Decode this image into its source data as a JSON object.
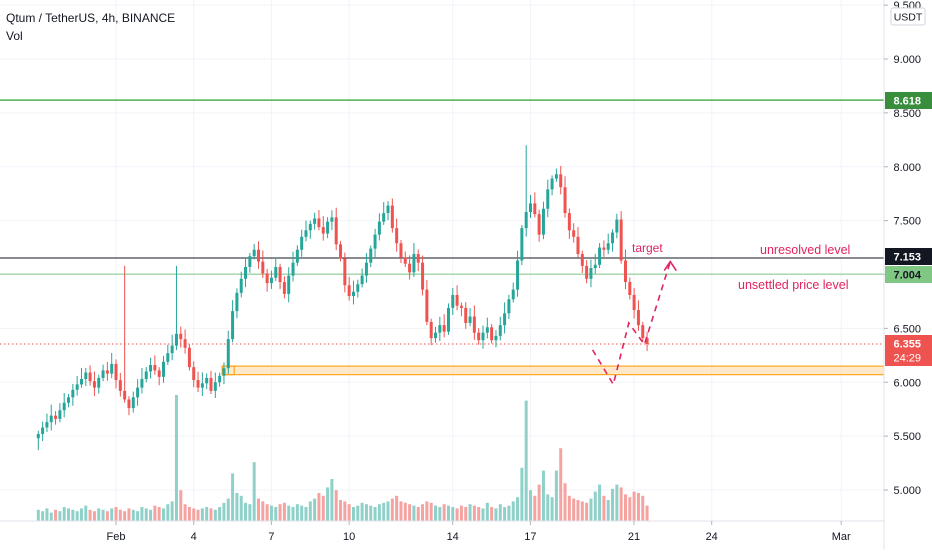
{
  "header": {
    "symbol_line": "Qtum / TetherUS, 4h, BINANCE",
    "volume_label": "Vol"
  },
  "price_axis": {
    "currency": "USDT",
    "ticks": [
      "9.500",
      "9.000",
      "8.500",
      "8.000",
      "7.500",
      "7.000",
      "6.500",
      "6.000",
      "5.500",
      "5.000"
    ]
  },
  "time_axis": {
    "ticks": [
      "Feb",
      "4",
      "7",
      "10",
      "14",
      "17",
      "21",
      "24",
      "Mar"
    ]
  },
  "price_labels": {
    "top_line": "8.618",
    "black_line": "7.153",
    "lower_green_line": "7.004",
    "last_price": "6.355",
    "countdown": "24:29"
  },
  "annotations": {
    "target": "target",
    "unresolved": "unresolved level",
    "unsettled": "unsettled price level"
  },
  "colors": {
    "up": "#26a69a",
    "down": "#ef5350",
    "up_volume": "#8fd1c9",
    "down_volume": "#f5a3a1",
    "green_line": "#4caf50",
    "black_line": "#131722",
    "annotation": "#e0245e",
    "zone_fill": "#ffe0b2",
    "zone_border": "#ff9800"
  },
  "chart_data": {
    "type": "candlestick",
    "title": "Qtum / TetherUS, 4h, BINANCE",
    "ylim": [
      4.75,
      9.6
    ],
    "y_ticks": [
      9.5,
      9.0,
      8.5,
      8.0,
      7.5,
      7.0,
      6.5,
      6.0,
      5.5,
      5.0
    ],
    "x_tick_labels": [
      "Feb",
      "4",
      "7",
      "10",
      "14",
      "17",
      "21",
      "24",
      "Mar"
    ],
    "x_tick_days": [
      1,
      4,
      7,
      10,
      14,
      17,
      21,
      24,
      29
    ],
    "first_candle_day": 29.0,
    "days_per_candle": 0.1667,
    "horizontal_levels": [
      {
        "price": 8.618,
        "color": "green"
      },
      {
        "price": 7.153,
        "color": "black"
      },
      {
        "price": 7.004,
        "color": "light-green"
      },
      {
        "price": 6.355,
        "color": "red-dotted",
        "note": "last price"
      }
    ],
    "support_zone": {
      "from_day": 5.1,
      "y_low": 6.07,
      "y_high": 6.15
    },
    "projection_path": [
      [
        19.4,
        6.3
      ],
      [
        20.2,
        5.98
      ],
      [
        20.8,
        6.55
      ],
      [
        21.4,
        6.35
      ],
      [
        22.4,
        7.12
      ]
    ],
    "candles_close": [
      5.52,
      5.58,
      5.63,
      5.69,
      5.66,
      5.74,
      5.81,
      5.86,
      5.93,
      5.98,
      6.03,
      6.09,
      6.01,
      5.95,
      6.04,
      6.11,
      6.08,
      6.17,
      6.02,
      5.92,
      5.84,
      5.76,
      5.86,
      5.95,
      6.03,
      6.1,
      6.16,
      6.11,
      6.05,
      6.19,
      6.27,
      6.34,
      6.45,
      6.4,
      6.32,
      6.14,
      6.02,
      5.95,
      5.99,
      6.04,
      5.92,
      6.0,
      6.06,
      6.13,
      6.4,
      6.66,
      6.83,
      6.96,
      7.07,
      7.17,
      7.23,
      7.12,
      7.01,
      6.92,
      6.97,
      7.07,
      6.93,
      6.82,
      6.99,
      7.11,
      7.23,
      7.35,
      7.41,
      7.47,
      7.52,
      7.44,
      7.38,
      7.49,
      7.53,
      7.28,
      7.15,
      6.9,
      6.8,
      6.84,
      6.91,
      6.99,
      7.11,
      7.24,
      7.37,
      7.49,
      7.57,
      7.64,
      7.43,
      7.29,
      7.16,
      7.1,
      7.02,
      7.19,
      7.11,
      6.86,
      6.56,
      6.41,
      6.46,
      6.53,
      6.47,
      6.69,
      6.81,
      6.71,
      6.69,
      6.55,
      6.61,
      6.46,
      6.39,
      6.46,
      6.51,
      6.39,
      6.43,
      6.53,
      6.64,
      6.77,
      6.86,
      7.13,
      7.43,
      7.58,
      7.66,
      7.56,
      7.37,
      7.61,
      7.79,
      7.89,
      7.93,
      7.81,
      7.57,
      7.41,
      7.35,
      7.19,
      7.08,
      6.96,
      7.06,
      7.09,
      7.25,
      7.23,
      7.29,
      7.39,
      7.51,
      7.13,
      6.93,
      6.81,
      6.67,
      6.53,
      6.41,
      6.355
    ],
    "volume_bars": [
      0.8,
      0.7,
      0.9,
      0.6,
      0.8,
      0.7,
      1.0,
      0.9,
      0.8,
      0.7,
      0.9,
      1.1,
      0.8,
      0.7,
      0.9,
      0.8,
      0.7,
      0.9,
      1.0,
      0.8,
      0.7,
      0.9,
      0.8,
      0.7,
      1.0,
      0.9,
      0.8,
      1.1,
      1.0,
      0.9,
      1.2,
      1.4,
      9.0,
      2.2,
      1.2,
      1.0,
      0.9,
      0.8,
      0.9,
      1.0,
      0.9,
      0.8,
      1.0,
      1.3,
      1.6,
      3.4,
      2.0,
      1.8,
      1.3,
      1.2,
      4.2,
      1.6,
      1.4,
      1.2,
      1.1,
      1.0,
      1.2,
      1.3,
      1.1,
      1.0,
      1.2,
      1.1,
      1.0,
      1.4,
      1.6,
      2.0,
      1.8,
      2.4,
      3.0,
      2.2,
      1.5,
      1.4,
      1.2,
      1.0,
      1.1,
      1.3,
      1.2,
      1.1,
      1.0,
      1.2,
      1.3,
      1.4,
      1.6,
      1.8,
      1.4,
      1.3,
      1.2,
      1.1,
      1.0,
      1.2,
      1.4,
      1.3,
      1.1,
      1.0,
      1.2,
      1.1,
      1.0,
      0.9,
      1.1,
      1.0,
      1.2,
      1.1,
      1.0,
      0.9,
      1.3,
      1.0,
      0.9,
      1.2,
      1.0,
      1.1,
      1.4,
      1.7,
      3.8,
      8.6,
      2.2,
      1.8,
      2.6,
      3.6,
      1.9,
      1.7,
      3.6,
      5.2,
      2.7,
      1.8,
      1.6,
      1.5,
      1.4,
      1.3,
      1.6,
      2.1,
      2.6,
      1.8,
      1.5,
      2.3,
      2.6,
      2.4,
      1.9,
      1.7,
      2.1,
      2.0,
      1.8,
      1.1
    ]
  }
}
